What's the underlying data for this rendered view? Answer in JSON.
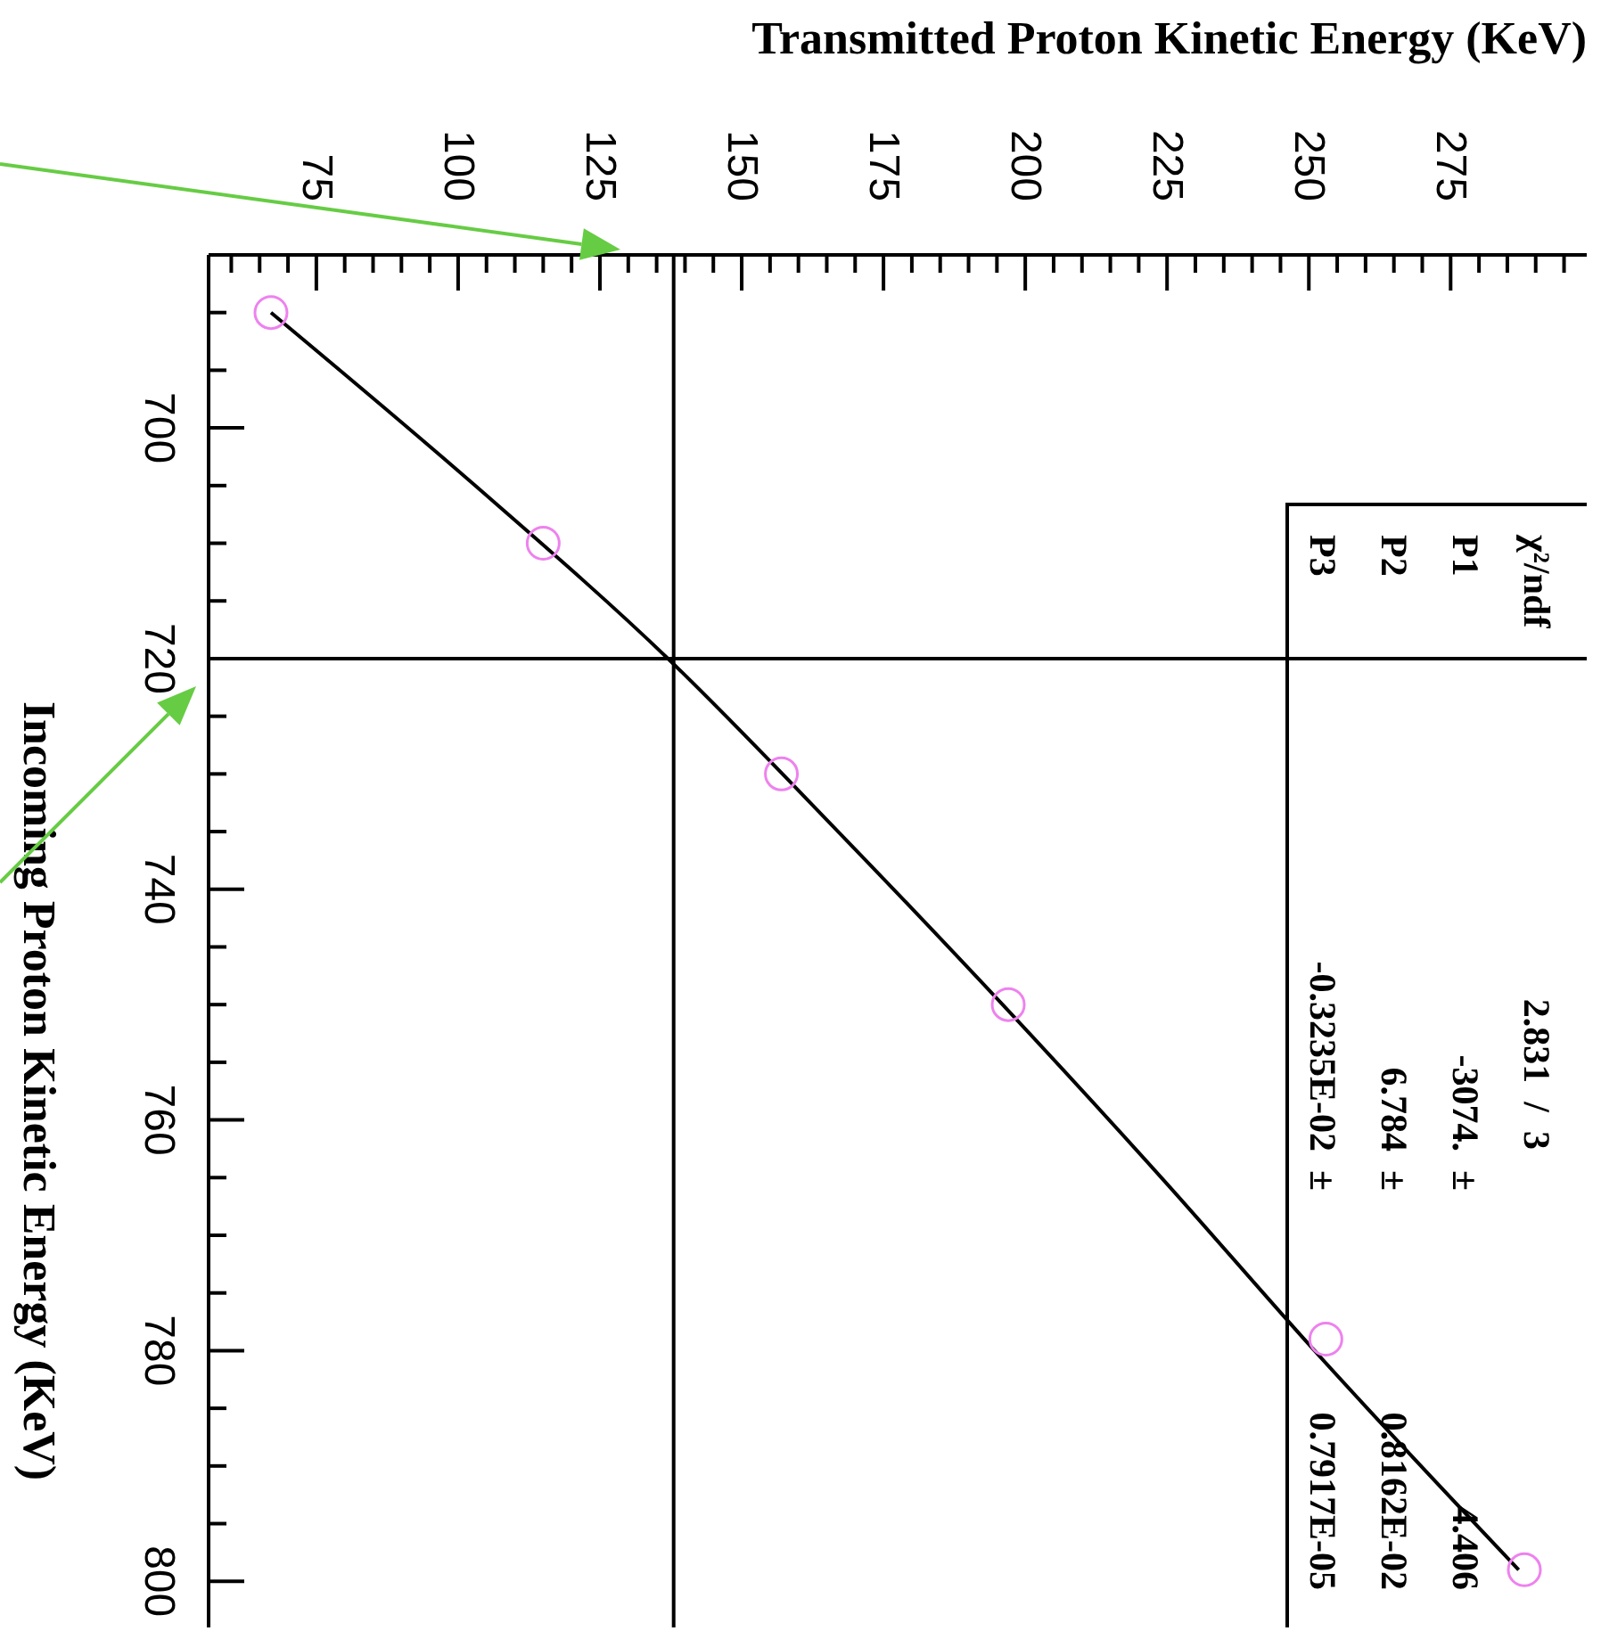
{
  "chart_data": {
    "type": "scatter",
    "xlabel": "Transmitted Proton Kinetic Energy (KeV)",
    "ylabel": "Incoming Proton Kinetic Energy (KeV)",
    "xlim": [
      56,
      299
    ],
    "ylim": [
      804,
      685
    ],
    "xticks": [
      {
        "value": 60,
        "label": null
      },
      {
        "value": 65,
        "label": null
      },
      {
        "value": 70,
        "label": null
      },
      75,
      {
        "value": 80,
        "label": null
      },
      {
        "value": 85,
        "label": null
      },
      {
        "value": 90,
        "label": null
      },
      {
        "value": 95,
        "label": null
      },
      100,
      {
        "value": 105,
        "label": null
      },
      {
        "value": 110,
        "label": null
      },
      {
        "value": 115,
        "label": null
      },
      {
        "value": 120,
        "label": null
      },
      125,
      {
        "value": 130,
        "label": null
      },
      {
        "value": 135,
        "label": null
      },
      {
        "value": 140,
        "label": null
      },
      {
        "value": 145,
        "label": null
      },
      150,
      {
        "value": 155,
        "label": null
      },
      {
        "value": 160,
        "label": null
      },
      {
        "value": 165,
        "label": null
      },
      {
        "value": 170,
        "label": null
      },
      175,
      {
        "value": 180,
        "label": null
      },
      {
        "value": 185,
        "label": null
      },
      {
        "value": 190,
        "label": null
      },
      {
        "value": 195,
        "label": null
      },
      200,
      {
        "value": 205,
        "label": null
      },
      {
        "value": 210,
        "label": null
      },
      {
        "value": 215,
        "label": null
      },
      {
        "value": 220,
        "label": null
      },
      225,
      {
        "value": 230,
        "label": null
      },
      {
        "value": 235,
        "label": null
      },
      {
        "value": 240,
        "label": null
      },
      {
        "value": 245,
        "label": null
      },
      250,
      {
        "value": 255,
        "label": null
      },
      {
        "value": 260,
        "label": null
      },
      {
        "value": 265,
        "label": null
      },
      {
        "value": 270,
        "label": null
      },
      275,
      {
        "value": 280,
        "label": null
      },
      {
        "value": 285,
        "label": null
      },
      {
        "value": 290,
        "label": null
      },
      {
        "value": 295,
        "label": null
      }
    ],
    "yticks": [
      {
        "value": 685,
        "label": null
      },
      {
        "value": 690,
        "label": null
      },
      {
        "value": 695,
        "label": null
      },
      700,
      {
        "value": 705,
        "label": null
      },
      {
        "value": 710,
        "label": null
      },
      {
        "value": 715,
        "label": null
      },
      720,
      {
        "value": 725,
        "label": null
      },
      {
        "value": 730,
        "label": null
      },
      {
        "value": 735,
        "label": null
      },
      740,
      {
        "value": 745,
        "label": null
      },
      {
        "value": 750,
        "label": null
      },
      {
        "value": 755,
        "label": null
      },
      760,
      {
        "value": 765,
        "label": null
      },
      {
        "value": 770,
        "label": null
      },
      {
        "value": 775,
        "label": null
      },
      780,
      {
        "value": 785,
        "label": null
      },
      {
        "value": 790,
        "label": null
      },
      {
        "value": 795,
        "label": null
      },
      800
    ],
    "grid": false,
    "legend": false,
    "marker": "circle",
    "series": [
      {
        "type": "line",
        "color": "#000000",
        "marker": "none",
        "line_style": "solid",
        "x": [
          67,
          103,
          137,
          167,
          196,
          224,
          251,
          287
        ],
        "values": [
          690,
          705,
          720,
          735,
          750,
          765,
          780,
          799
        ]
      },
      {
        "color": "#ee82ee",
        "x": [
          67,
          115,
          157,
          197,
          253,
          288
        ],
        "values": [
          690,
          710,
          730,
          750,
          779,
          799
        ]
      }
    ],
    "ref_lines": [
      {
        "axis": "y",
        "value": 720,
        "color": "#000000"
      },
      {
        "axis": "x",
        "value": 138,
        "color": "#000000"
      }
    ],
    "annotations": [
      "χ²/ndf",
      "2.831  /  3",
      "P1",
      "-3074.  ±",
      "4.406",
      "P2",
      "6.784  ±",
      "0.8162E-02",
      "P3",
      "-0.3235E-02  ±",
      "0.7917E-05"
    ]
  }
}
